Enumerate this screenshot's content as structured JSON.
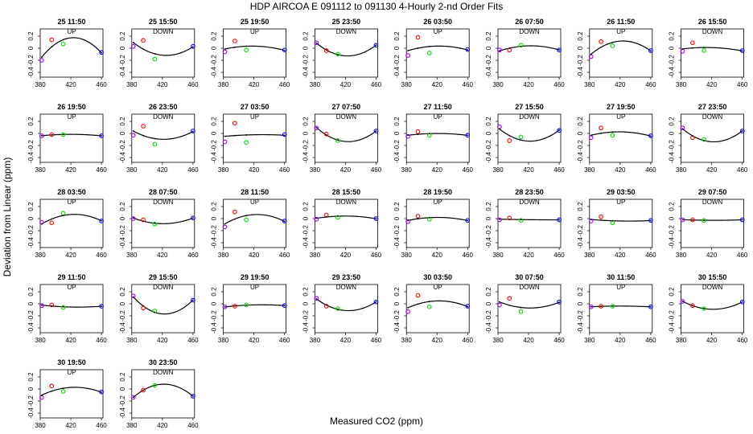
{
  "title": "HDP   AIRCOA E    091112 to 091130   4-Hourly 2-nd Order Fits",
  "xlabel": "Measured CO2 (ppm)",
  "ylabel": "Deviation from Linear (ppm)",
  "colors": {
    "curve": "#000000",
    "s1": "#9900ff",
    "s2": "#ff0000",
    "s3": "#00dd00",
    "s4": "#0000ff"
  },
  "chart_data": {
    "type": "scatter",
    "xlim": [
      380,
      462
    ],
    "ylim": [
      -0.48,
      0.32
    ],
    "xticks": [
      380,
      420,
      460
    ],
    "xtick_labels": [
      "380",
      "420",
      "460"
    ],
    "yticks": [
      -0.4,
      -0.2,
      0,
      0.2
    ],
    "ytick_labels": [
      "-0.4",
      "-0.2",
      "0",
      "0.2"
    ],
    "standards_x": [
      382,
      395,
      410,
      460
    ],
    "panels": [
      {
        "title": "25 11:50",
        "dir": "UP",
        "y": [
          -0.2,
          0.14,
          0.07,
          -0.07
        ]
      },
      {
        "title": "25 15:50",
        "dir": "DOWN",
        "y": [
          0.03,
          0.13,
          -0.18,
          0.03
        ]
      },
      {
        "title": "25 19:50",
        "dir": "UP",
        "y": [
          -0.06,
          0.12,
          -0.03,
          -0.03
        ]
      },
      {
        "title": "25 23:50",
        "dir": "DOWN",
        "y": [
          0.09,
          -0.04,
          -0.1,
          0.05
        ]
      },
      {
        "title": "26 03:50",
        "dir": "UP",
        "y": [
          -0.12,
          0.18,
          -0.08,
          -0.02
        ]
      },
      {
        "title": "26 07:50",
        "dir": "DOWN",
        "y": [
          -0.03,
          -0.03,
          0.05,
          -0.03
        ]
      },
      {
        "title": "26 11:50",
        "dir": "UP",
        "y": [
          -0.14,
          0.11,
          0.04,
          -0.04
        ]
      },
      {
        "title": "26 15:50",
        "dir": "DOWN",
        "y": [
          -0.05,
          0.09,
          -0.04,
          -0.04
        ]
      },
      {
        "title": "26 19:50",
        "dir": "UP",
        "y": [
          -0.04,
          -0.02,
          -0.02,
          -0.04
        ]
      },
      {
        "title": "26 23:50",
        "dir": "DOWN",
        "y": [
          -0.03,
          0.12,
          -0.18,
          0.04
        ]
      },
      {
        "title": "27 03:50",
        "dir": "UP",
        "y": [
          -0.14,
          0.17,
          -0.15,
          -0.02
        ]
      },
      {
        "title": "27 07:50",
        "dir": "DOWN",
        "y": [
          0.09,
          -0.01,
          -0.12,
          0.04
        ]
      },
      {
        "title": "27 11:50",
        "dir": "UP",
        "y": [
          -0.05,
          0.03,
          -0.03,
          -0.03
        ]
      },
      {
        "title": "27 15:50",
        "dir": "DOWN",
        "y": [
          0.11,
          -0.12,
          -0.06,
          0.05
        ]
      },
      {
        "title": "27 19:50",
        "dir": "UP",
        "y": [
          -0.07,
          0.09,
          -0.03,
          -0.04
        ]
      },
      {
        "title": "27 23:50",
        "dir": "DOWN",
        "y": [
          0.09,
          -0.07,
          -0.1,
          0.04
        ]
      },
      {
        "title": "28 03:50",
        "dir": "UP",
        "y": [
          -0.06,
          -0.07,
          0.09,
          -0.04
        ]
      },
      {
        "title": "28 07:50",
        "dir": "DOWN",
        "y": [
          0.0,
          -0.02,
          -0.09,
          0.01
        ]
      },
      {
        "title": "28 11:50",
        "dir": "UP",
        "y": [
          -0.14,
          0.11,
          -0.02,
          -0.04
        ]
      },
      {
        "title": "28 15:50",
        "dir": "DOWN",
        "y": [
          -0.01,
          0.06,
          0.02,
          0.0
        ]
      },
      {
        "title": "28 19:50",
        "dir": "UP",
        "y": [
          -0.05,
          0.04,
          -0.01,
          -0.03
        ]
      },
      {
        "title": "28 23:50",
        "dir": "DOWN",
        "y": [
          -0.02,
          0.01,
          -0.03,
          -0.02
        ]
      },
      {
        "title": "29 03:50",
        "dir": "UP",
        "y": [
          -0.04,
          0.03,
          -0.07,
          -0.03
        ]
      },
      {
        "title": "29 07:50",
        "dir": "DOWN",
        "y": [
          -0.02,
          -0.02,
          -0.03,
          -0.02
        ]
      },
      {
        "title": "29 11:50",
        "dir": "UP",
        "y": [
          -0.03,
          -0.02,
          -0.06,
          -0.04
        ]
      },
      {
        "title": "29 15:50",
        "dir": "DOWN",
        "y": [
          0.13,
          -0.07,
          -0.12,
          0.06
        ]
      },
      {
        "title": "29 19:50",
        "dir": "UP",
        "y": [
          -0.05,
          -0.04,
          -0.02,
          -0.03
        ]
      },
      {
        "title": "29 23:50",
        "dir": "DOWN",
        "y": [
          0.09,
          -0.04,
          -0.08,
          0.03
        ]
      },
      {
        "title": "30 03:50",
        "dir": "UP",
        "y": [
          -0.13,
          0.14,
          -0.05,
          -0.04
        ]
      },
      {
        "title": "30 07:50",
        "dir": "DOWN",
        "y": [
          -0.02,
          0.09,
          -0.13,
          0.03
        ]
      },
      {
        "title": "30 11:50",
        "dir": "UP",
        "y": [
          -0.05,
          -0.04,
          -0.04,
          -0.05
        ]
      },
      {
        "title": "30 15:50",
        "dir": "DOWN",
        "y": [
          0.04,
          -0.03,
          -0.08,
          0.03
        ]
      },
      {
        "title": "30 19:50",
        "dir": "UP",
        "y": [
          -0.14,
          0.05,
          -0.04,
          -0.05
        ]
      },
      {
        "title": "30 23:50",
        "dir": "DOWN",
        "y": [
          -0.14,
          -0.02,
          0.06,
          -0.12
        ]
      }
    ]
  }
}
